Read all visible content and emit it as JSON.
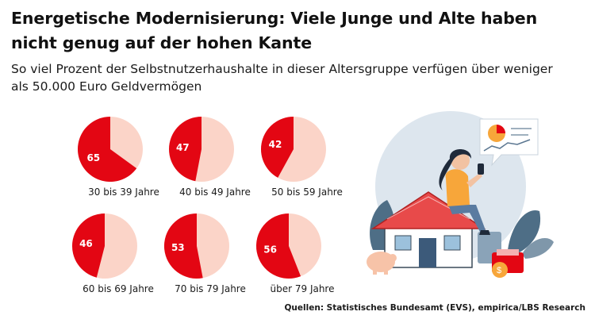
{
  "title": "Energetische Modernisierung: Viele Junge und Alte haben nicht genug auf der hohen Kante",
  "subtitle": "So viel Prozent der Selbstnutzerhaushalte in dieser Altersgruppe verfügen über weniger als 50.000 Euro Geldvermögen",
  "source": "Quellen: Statistisches Bundesamt (EVS), empirica/LBS Research",
  "colors": {
    "accent": "#e30613",
    "remainder": "#fbd4c8",
    "value_text": "#ffffff"
  },
  "chart_data": {
    "type": "pie",
    "unit": "%",
    "categories": [
      "30 bis 39 Jahre",
      "40 bis 49 Jahre",
      "50 bis 59 Jahre",
      "60 bis 69 Jahre",
      "70 bis 79 Jahre",
      "über 79 Jahre"
    ],
    "values": [
      65,
      47,
      42,
      46,
      53,
      56
    ],
    "value_labels": [
      "65",
      "47",
      "42",
      "46",
      "53",
      "56"
    ]
  },
  "illustration": {
    "icon": "woman-on-house-with-phone-icon"
  }
}
